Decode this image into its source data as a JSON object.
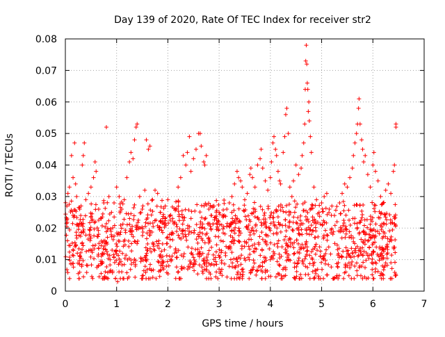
{
  "chart_data": {
    "type": "scatter",
    "title": "Day 139 of 2020, Rate Of TEC Index for receiver str2",
    "xlabel": "GPS time / hours",
    "ylabel": "ROTI / TECUs",
    "xlim": [
      0,
      7
    ],
    "ylim": [
      0,
      0.08
    ],
    "x_ticks": [
      "0",
      "1",
      "2",
      "3",
      "4",
      "5",
      "6",
      "7"
    ],
    "y_ticks": [
      "0",
      "0.01",
      "0.02",
      "0.03",
      "0.04",
      "0.05",
      "0.06",
      "0.07",
      "0.08"
    ],
    "grid": true,
    "marker": "plus",
    "color": "#ff0000",
    "baseline": {
      "x_end": 6.45,
      "typical_low": 0.007,
      "typical_high": 0.024
    },
    "series": [
      {
        "points": [
          [
            0.03,
            0.027
          ],
          [
            0.05,
            0.031
          ],
          [
            0.08,
            0.033
          ],
          [
            0.12,
            0.043
          ],
          [
            0.15,
            0.036
          ],
          [
            0.18,
            0.047
          ],
          [
            0.2,
            0.034
          ],
          [
            0.22,
            0.03
          ],
          [
            0.25,
            0.021
          ],
          [
            0.28,
            0.026
          ],
          [
            0.3,
            0.024
          ],
          [
            0.33,
            0.04
          ],
          [
            0.35,
            0.043
          ],
          [
            0.37,
            0.047
          ],
          [
            0.4,
            0.029
          ],
          [
            0.45,
            0.031
          ],
          [
            0.5,
            0.033
          ],
          [
            0.55,
            0.036
          ],
          [
            0.58,
            0.041
          ],
          [
            0.6,
            0.038
          ],
          [
            0.65,
            0.026
          ],
          [
            0.7,
            0.023
          ],
          [
            0.75,
            0.028
          ],
          [
            0.8,
            0.052
          ],
          [
            0.85,
            0.03
          ],
          [
            0.9,
            0.025
          ],
          [
            0.95,
            0.028
          ],
          [
            1.0,
            0.033
          ],
          [
            1.02,
            0.003
          ],
          [
            1.05,
            0.03
          ],
          [
            1.1,
            0.026
          ],
          [
            1.15,
            0.029
          ],
          [
            1.2,
            0.036
          ],
          [
            1.25,
            0.041
          ],
          [
            1.28,
            0.044
          ],
          [
            1.32,
            0.042
          ],
          [
            1.35,
            0.048
          ],
          [
            1.38,
            0.052
          ],
          [
            1.4,
            0.053
          ],
          [
            1.45,
            0.03
          ],
          [
            1.5,
            0.026
          ],
          [
            1.55,
            0.032
          ],
          [
            1.58,
            0.048
          ],
          [
            1.62,
            0.045
          ],
          [
            1.65,
            0.046
          ],
          [
            1.7,
            0.029
          ],
          [
            1.75,
            0.032
          ],
          [
            1.8,
            0.031
          ],
          [
            1.85,
            0.025
          ],
          [
            1.9,
            0.023
          ],
          [
            1.95,
            0.027
          ],
          [
            2.0,
            0.029
          ],
          [
            2.05,
            0.024
          ],
          [
            2.1,
            0.022
          ],
          [
            2.15,
            0.026
          ],
          [
            2.2,
            0.033
          ],
          [
            2.25,
            0.036
          ],
          [
            2.3,
            0.043
          ],
          [
            2.35,
            0.04
          ],
          [
            2.38,
            0.044
          ],
          [
            2.42,
            0.049
          ],
          [
            2.45,
            0.038
          ],
          [
            2.5,
            0.042
          ],
          [
            2.55,
            0.045
          ],
          [
            2.6,
            0.05
          ],
          [
            2.63,
            0.05
          ],
          [
            2.65,
            0.046
          ],
          [
            2.7,
            0.041
          ],
          [
            2.72,
            0.04
          ],
          [
            2.75,
            0.043
          ],
          [
            2.8,
            0.026
          ],
          [
            2.85,
            0.024
          ],
          [
            2.9,
            0.027
          ],
          [
            2.95,
            0.023
          ],
          [
            3.0,
            0.025
          ],
          [
            3.05,
            0.021
          ],
          [
            3.1,
            0.024
          ],
          [
            3.15,
            0.026
          ],
          [
            3.2,
            0.028
          ],
          [
            3.25,
            0.03
          ],
          [
            3.3,
            0.034
          ],
          [
            3.35,
            0.038
          ],
          [
            3.38,
            0.036
          ],
          [
            3.42,
            0.035
          ],
          [
            3.45,
            0.033
          ],
          [
            3.5,
            0.029
          ],
          [
            3.55,
            0.031
          ],
          [
            3.6,
            0.037
          ],
          [
            3.62,
            0.039
          ],
          [
            3.65,
            0.036
          ],
          [
            3.7,
            0.033
          ],
          [
            3.75,
            0.04
          ],
          [
            3.8,
            0.042
          ],
          [
            3.82,
            0.045
          ],
          [
            3.85,
            0.039
          ],
          [
            3.9,
            0.035
          ],
          [
            3.95,
            0.032
          ],
          [
            4.0,
            0.036
          ],
          [
            4.02,
            0.041
          ],
          [
            4.05,
            0.047
          ],
          [
            4.07,
            0.049
          ],
          [
            4.1,
            0.045
          ],
          [
            4.12,
            0.043
          ],
          [
            4.15,
            0.038
          ],
          [
            4.18,
            0.035
          ],
          [
            4.2,
            0.034
          ],
          [
            4.25,
            0.044
          ],
          [
            4.28,
            0.049
          ],
          [
            4.3,
            0.056
          ],
          [
            4.32,
            0.058
          ],
          [
            4.35,
            0.05
          ],
          [
            4.38,
            0.033
          ],
          [
            4.42,
            0.03
          ],
          [
            4.45,
            0.035
          ],
          [
            4.5,
            0.04
          ],
          [
            4.55,
            0.037
          ],
          [
            4.6,
            0.039
          ],
          [
            4.62,
            0.043
          ],
          [
            4.65,
            0.047
          ],
          [
            4.67,
            0.053
          ],
          [
            4.68,
            0.064
          ],
          [
            4.69,
            0.073
          ],
          [
            4.7,
            0.078
          ],
          [
            4.71,
            0.072
          ],
          [
            4.72,
            0.066
          ],
          [
            4.73,
            0.064
          ],
          [
            4.74,
            0.057
          ],
          [
            4.75,
            0.06
          ],
          [
            4.76,
            0.054
          ],
          [
            4.78,
            0.049
          ],
          [
            4.8,
            0.044
          ],
          [
            4.85,
            0.033
          ],
          [
            4.9,
            0.029
          ],
          [
            4.95,
            0.025
          ],
          [
            5.0,
            0.028
          ],
          [
            5.05,
            0.03
          ],
          [
            5.1,
            0.031
          ],
          [
            5.15,
            0.026
          ],
          [
            5.2,
            0.027
          ],
          [
            5.25,
            0.024
          ],
          [
            5.3,
            0.022
          ],
          [
            5.35,
            0.028
          ],
          [
            5.4,
            0.031
          ],
          [
            5.45,
            0.034
          ],
          [
            5.5,
            0.033
          ],
          [
            5.55,
            0.036
          ],
          [
            5.6,
            0.039
          ],
          [
            5.62,
            0.043
          ],
          [
            5.65,
            0.047
          ],
          [
            5.68,
            0.05
          ],
          [
            5.7,
            0.053
          ],
          [
            5.72,
            0.058
          ],
          [
            5.73,
            0.061
          ],
          [
            5.75,
            0.053
          ],
          [
            5.78,
            0.048
          ],
          [
            5.8,
            0.045
          ],
          [
            5.82,
            0.041
          ],
          [
            5.85,
            0.043
          ],
          [
            5.9,
            0.037
          ],
          [
            5.95,
            0.033
          ],
          [
            6.0,
            0.04
          ],
          [
            6.02,
            0.044
          ],
          [
            6.05,
            0.038
          ],
          [
            6.1,
            0.035
          ],
          [
            6.15,
            0.03
          ],
          [
            6.2,
            0.028
          ],
          [
            6.25,
            0.032
          ],
          [
            6.3,
            0.034
          ],
          [
            6.35,
            0.031
          ],
          [
            6.4,
            0.038
          ],
          [
            6.42,
            0.04
          ],
          [
            6.45,
            0.053
          ],
          [
            6.45,
            0.052
          ],
          [
            5.32,
            0.004
          ],
          [
            5.3,
            0.005
          ],
          [
            0.28,
            0.006
          ],
          [
            1.52,
            0.005
          ],
          [
            3.0,
            0.007
          ],
          [
            6.45,
            0.005
          ],
          [
            4.85,
            0.004
          ]
        ]
      }
    ]
  }
}
